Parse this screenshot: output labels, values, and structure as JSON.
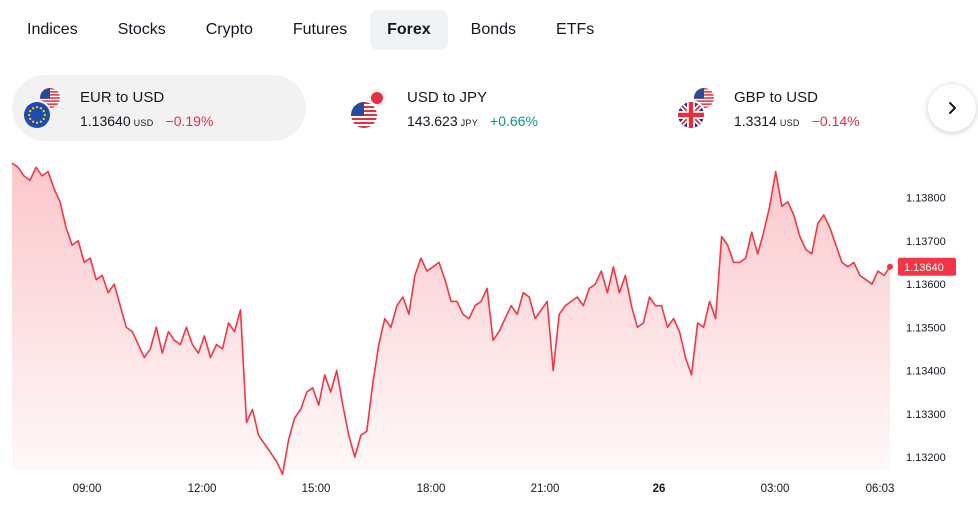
{
  "tabs": [
    {
      "label": "Indices",
      "active": false
    },
    {
      "label": "Stocks",
      "active": false
    },
    {
      "label": "Crypto",
      "active": false
    },
    {
      "label": "Futures",
      "active": false
    },
    {
      "label": "Forex",
      "active": true
    },
    {
      "label": "Bonds",
      "active": false
    },
    {
      "label": "ETFs",
      "active": false
    }
  ],
  "cards": [
    {
      "name": "EUR to USD",
      "price": "1.13640",
      "currency": "USD",
      "change": "−0.19%",
      "direction": "negative",
      "flags": [
        "us-flag-icon",
        "eu-flag-icon"
      ],
      "active": true
    },
    {
      "name": "USD to JPY",
      "price": "143.623",
      "currency": "JPY",
      "change": "+0.66%",
      "direction": "positive",
      "flags": [
        "japan-flag-icon",
        "us-flag-icon"
      ],
      "active": false
    },
    {
      "name": "GBP to USD",
      "price": "1.3314",
      "currency": "USD",
      "change": "−0.14%",
      "direction": "negative",
      "flags": [
        "us-flag-icon",
        "uk-flag-icon"
      ],
      "active": false
    }
  ],
  "next_button": {
    "icon": "chevron-right-icon"
  },
  "colors": {
    "line": "#f23645",
    "negative": "#e02f44",
    "positive": "#089981",
    "active_tab_bg": "#f0f3f5"
  },
  "chart_data": {
    "type": "area",
    "series": [
      {
        "values": [
          1.1388,
          1.1387,
          1.1385,
          1.1384,
          1.1387,
          1.1385,
          1.1386,
          1.1382,
          1.1379,
          1.1373,
          1.1369,
          1.137,
          1.1365,
          1.1366,
          1.1361,
          1.1362,
          1.1358,
          1.136,
          1.1355,
          1.135,
          1.1349,
          1.1346,
          1.1343,
          1.1345,
          1.135,
          1.1344,
          1.1349,
          1.1347,
          1.1346,
          1.135,
          1.1346,
          1.1344,
          1.1348,
          1.1343,
          1.1346,
          1.1345,
          1.1351,
          1.1349,
          1.1354,
          1.1328,
          1.1331,
          1.1325,
          1.1323,
          1.1321,
          1.1319,
          1.1316,
          1.1324,
          1.1329,
          1.1331,
          1.1335,
          1.1336,
          1.1332,
          1.1339,
          1.1335,
          1.134,
          1.1332,
          1.1325,
          1.132,
          1.1325,
          1.1326,
          1.1337,
          1.1346,
          1.1352,
          1.135,
          1.1355,
          1.1357,
          1.1353,
          1.1362,
          1.1366,
          1.1363,
          1.1364,
          1.1365,
          1.1361,
          1.1356,
          1.1356,
          1.1353,
          1.1352,
          1.1355,
          1.1356,
          1.1359,
          1.1347,
          1.1349,
          1.1352,
          1.1355,
          1.1353,
          1.1358,
          1.1357,
          1.1352,
          1.1354,
          1.1356,
          1.134,
          1.1353,
          1.1355,
          1.1356,
          1.1357,
          1.1355,
          1.1359,
          1.136,
          1.1363,
          1.1358,
          1.1364,
          1.1358,
          1.1362,
          1.1355,
          1.135,
          1.1351,
          1.1357,
          1.1355,
          1.1355,
          1.135,
          1.1352,
          1.1349,
          1.1343,
          1.1339,
          1.1351,
          1.135,
          1.1356,
          1.1352,
          1.1371,
          1.1369,
          1.1365,
          1.1365,
          1.1366,
          1.1372,
          1.1367,
          1.1372,
          1.1378,
          1.1386,
          1.1378,
          1.1379,
          1.1376,
          1.1371,
          1.1368,
          1.1367,
          1.1374,
          1.1376,
          1.1373,
          1.1369,
          1.1365,
          1.1364,
          1.1365,
          1.1362,
          1.1361,
          1.136,
          1.1363,
          1.1362,
          1.1364
        ],
        "last": 1.1364
      }
    ],
    "x_ticks": [
      "09:00",
      "12:00",
      "15:00",
      "18:00",
      "21:00",
      "26",
      "03:00",
      "06:03"
    ],
    "y_ticks": [
      "1.13800",
      "1.13700",
      "1.13600",
      "1.13500",
      "1.13400",
      "1.13300",
      "1.13200"
    ],
    "last_price_label": "1.13640",
    "ylim": [
      1.1317,
      1.1391
    ],
    "grid": false
  }
}
